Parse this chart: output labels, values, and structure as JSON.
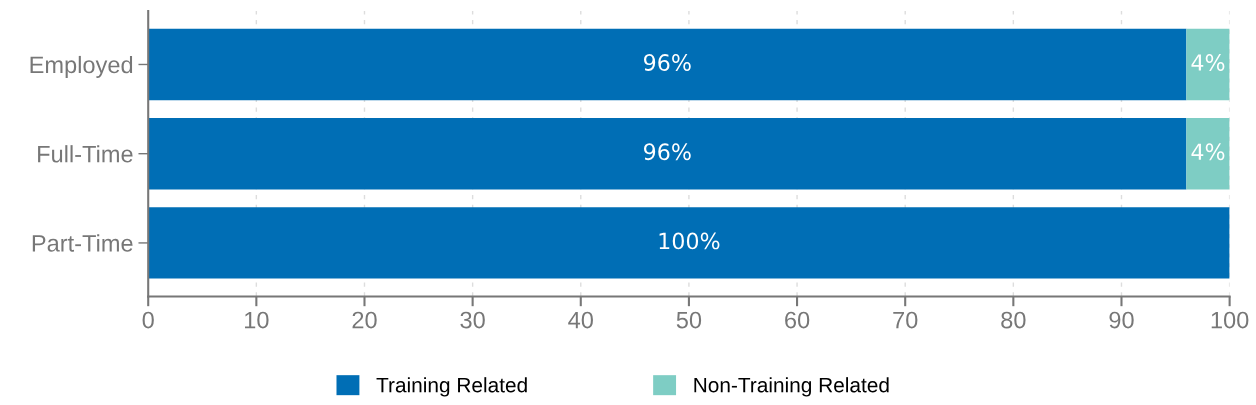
{
  "chart_data": {
    "type": "bar",
    "orientation": "horizontal",
    "stacked": true,
    "categories": [
      "Employed",
      "Full-Time",
      "Part-Time"
    ],
    "series": [
      {
        "name": "Training Related",
        "color": "#006eb5",
        "values": [
          96,
          96,
          100
        ],
        "value_labels": [
          "96%",
          "96%",
          "100%"
        ]
      },
      {
        "name": "Non-Training Related",
        "color": "#7ecdc4",
        "values": [
          4,
          4,
          0
        ],
        "value_labels": [
          "4%",
          "4%",
          null
        ]
      }
    ],
    "xlim": [
      0,
      100
    ],
    "xticks": [
      0,
      10,
      20,
      30,
      40,
      50,
      60,
      70,
      80,
      90,
      100
    ],
    "grid": "x",
    "legend": "bottom"
  }
}
